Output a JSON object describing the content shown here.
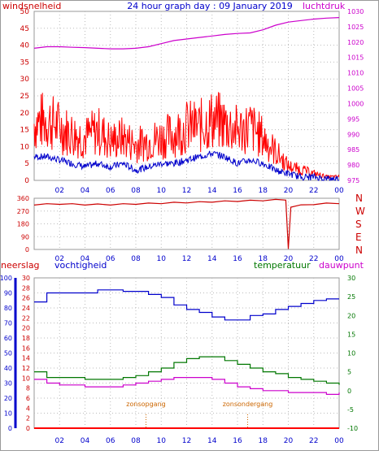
{
  "title": "24 hour graph day : 09 January 2019",
  "colors": {
    "wind": "#ff0000",
    "gust": "#ff0000",
    "avg": "#0000cc",
    "pressure": "#cc00cc",
    "direction": "#cc0000",
    "humidity": "#0000cc",
    "temperature": "#007700",
    "dewpoint": "#cc00cc",
    "rain": "#ff0000",
    "annotation": "#cc6600",
    "grid": "#bbbbbb"
  },
  "x_ticks": [
    "02",
    "04",
    "06",
    "08",
    "10",
    "12",
    "14",
    "16",
    "18",
    "20",
    "22",
    "00"
  ],
  "panel1": {
    "left_label": "windsnelheid",
    "right_label": "luchtdruk",
    "left_ticks": [
      "0",
      "5",
      "10",
      "15",
      "20",
      "25",
      "30",
      "35",
      "40",
      "45",
      "50"
    ],
    "right_ticks": [
      "975",
      "980",
      "985",
      "990",
      "995",
      "1000",
      "1005",
      "1010",
      "1015",
      "1020",
      "1025",
      "1030"
    ]
  },
  "panel2": {
    "left_ticks": [
      "0",
      "90",
      "180",
      "270",
      "360"
    ],
    "compass": [
      "N",
      "W",
      "S",
      "E",
      "N"
    ]
  },
  "panel3": {
    "label_rain": "neerslag",
    "label_humidity": "vochtigheid",
    "label_temperature": "temperatuur",
    "label_dewpoint": "dauwpunt",
    "rain_ticks": [
      "0",
      "10",
      "20",
      "30",
      "40",
      "50",
      "60",
      "70",
      "80",
      "90",
      "100"
    ],
    "hum_ticks": [
      "0",
      "2",
      "4",
      "6",
      "8",
      "10",
      "12",
      "14",
      "16",
      "18",
      "20",
      "22",
      "24",
      "26",
      "28",
      "30"
    ],
    "temp_ticks": [
      "-10",
      "-5",
      "0",
      "5",
      "10",
      "15",
      "20",
      "25",
      "30"
    ],
    "sunrise_label": "zonsopgang",
    "sunset_label": "zonsondergang"
  },
  "chart_data": [
    {
      "type": "line",
      "xlabel": "",
      "ylabel": "windsnelheid",
      "y2label": "luchtdruk",
      "x": [
        0,
        1,
        2,
        3,
        4,
        5,
        6,
        7,
        8,
        9,
        10,
        11,
        12,
        13,
        14,
        15,
        16,
        17,
        18,
        19,
        20,
        21,
        22,
        23,
        24
      ],
      "ylim": [
        0,
        50
      ],
      "y2lim": [
        975,
        1030
      ],
      "series": [
        {
          "name": "windsnelheid",
          "axis": "left",
          "values": [
            16,
            17,
            15,
            13,
            12,
            14,
            11,
            12,
            10,
            11,
            12,
            13,
            15,
            15,
            17,
            16,
            14,
            15,
            12,
            8,
            4,
            3,
            2,
            1,
            1
          ]
        },
        {
          "name": "windsnelheid",
          "axis": "left",
          "values": [
            7,
            7,
            6,
            5,
            4,
            5,
            4,
            5,
            3,
            4,
            5,
            5,
            6,
            7,
            8,
            7,
            5,
            6,
            5,
            3,
            2,
            1,
            1,
            0.5,
            0.5
          ]
        },
        {
          "name": "luchtdruk",
          "axis": "right",
          "values": [
            1018,
            1018.5,
            1018.5,
            1018.3,
            1018.2,
            1018,
            1017.8,
            1017.8,
            1018,
            1018.5,
            1019.5,
            1020.5,
            1021,
            1021.5,
            1022,
            1022.5,
            1022.8,
            1023,
            1024,
            1025.5,
            1026.5,
            1027,
            1027.5,
            1027.8,
            1028
          ]
        }
      ]
    },
    {
      "type": "line",
      "ylabel": "windrichting",
      "x": [
        0,
        1,
        2,
        3,
        4,
        5,
        6,
        7,
        8,
        9,
        10,
        11,
        12,
        13,
        14,
        15,
        16,
        17,
        18,
        19,
        19.8,
        20,
        20.2,
        21,
        22,
        23,
        24
      ],
      "ylim": [
        0,
        360
      ],
      "series": [
        {
          "name": "",
          "values": [
            315,
            318,
            320,
            318,
            315,
            316,
            315,
            318,
            320,
            322,
            325,
            328,
            330,
            332,
            335,
            338,
            340,
            342,
            345,
            348,
            350,
            0,
            300,
            310,
            318,
            322,
            325
          ]
        }
      ]
    },
    {
      "type": "line",
      "x": [
        0,
        1,
        2,
        3,
        4,
        5,
        6,
        7,
        8,
        9,
        10,
        11,
        12,
        13,
        14,
        15,
        16,
        17,
        18,
        19,
        20,
        21,
        22,
        23,
        24
      ],
      "ylim": [
        0,
        100
      ],
      "y_temp_lim": [
        -10,
        30
      ],
      "series": [
        {
          "name": "vochtigheid",
          "axis": "humidity",
          "values": [
            84,
            90,
            90,
            90,
            90,
            92,
            92,
            91,
            91,
            89,
            87,
            82,
            79,
            77,
            74,
            72,
            72,
            75,
            76,
            79,
            81,
            83,
            85,
            86,
            86
          ]
        },
        {
          "name": "temperatuur",
          "axis": "temp",
          "values": [
            5,
            3.5,
            3.5,
            3.5,
            3,
            3,
            3,
            3.5,
            4,
            5,
            6,
            7.5,
            8.5,
            9,
            9,
            8,
            7,
            6,
            5,
            4.5,
            3.5,
            3,
            2.5,
            2,
            1.5
          ]
        },
        {
          "name": "dauwpunt",
          "axis": "temp",
          "values": [
            3,
            2,
            1.5,
            1.5,
            1,
            1,
            1,
            1.5,
            2,
            2.5,
            3,
            3.5,
            3.5,
            3.5,
            3,
            2,
            1,
            0.5,
            0,
            0,
            -0.5,
            -0.5,
            -0.5,
            -1,
            -0.5
          ]
        },
        {
          "name": "neerslag",
          "axis": "rain",
          "values": [
            0,
            0,
            0,
            0,
            0,
            0,
            0,
            0,
            0,
            0,
            0,
            0,
            0,
            0,
            0,
            0,
            0,
            0,
            0,
            0,
            0,
            0,
            0,
            0,
            0
          ]
        }
      ],
      "annotations": [
        "zonsopgang",
        "zonsondergang"
      ],
      "sunrise_hour": 8.8,
      "sunset_hour": 16.8
    }
  ]
}
